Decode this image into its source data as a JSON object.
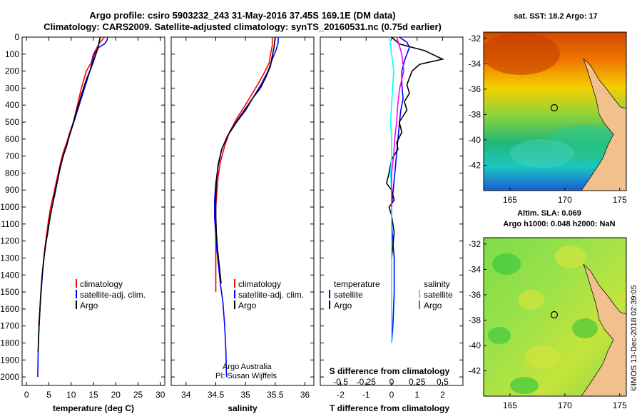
{
  "title_line1": "Argo profile: csiro 5903232_243 31-May-2016 37.45S 169.1E (DM data)",
  "title_line2": "Climatology: CARS2009. Satellite-adjusted climatology: synTS_20160531.nc (0.75d earlier)",
  "credit_line1": "Argo Australia",
  "credit_line2": "PI: Susan Wijffels",
  "copyright": "©IMOS 13-Dec-2018 02:39:05",
  "colors": {
    "climatology": "#ff0000",
    "satellite": "#0000ff",
    "argo": "#000000",
    "sat_s": "#00ffff",
    "argo_s": "#ff00ff"
  },
  "depth_ticks": [
    "0",
    "100",
    "200",
    "300",
    "400",
    "500",
    "600",
    "700",
    "800",
    "900",
    "1000",
    "1100",
    "1200",
    "1300",
    "1400",
    "1500",
    "1600",
    "1700",
    "1800",
    "1900",
    "2000"
  ],
  "legend_labels": [
    "climatology",
    "satellite-adj. clim.",
    "Argo"
  ],
  "diff_legend": {
    "temp_header": "temperature",
    "sal_header": "salinity",
    "satellite": "satellite",
    "argo": "Argo"
  },
  "map1": {
    "title": "sat. SST: 18.2  Argo: 17",
    "yticks": [
      "-32",
      "-34",
      "-36",
      "-38",
      "-40",
      "-42"
    ],
    "xticks": [
      "165",
      "170",
      "175"
    ]
  },
  "map2": {
    "title_line1": "Altim. SLA: 0.069",
    "title_line2": "Argo h1000: 0.048 h2000: NaN",
    "yticks": [
      "-32",
      "-34",
      "-36",
      "-38",
      "-40",
      "-42"
    ],
    "xticks": [
      "165",
      "170",
      "175"
    ]
  },
  "chart_data": [
    {
      "type": "line",
      "xlabel": "temperature (deg C)",
      "ylabel": "",
      "xlim": [
        -1,
        31
      ],
      "ylim": [
        2050,
        0
      ],
      "xticks": [
        "0",
        "5",
        "10",
        "15",
        "20",
        "25",
        "30"
      ],
      "series": [
        {
          "name": "climatology",
          "x": [
            17.5,
            16.5,
            15.6,
            15,
            14.5,
            13.4,
            12.3,
            11.4,
            10.5,
            9.7,
            9,
            8.2,
            7.6,
            7.1,
            6.6,
            6.1,
            5.4,
            4.9,
            4.5,
            4.1,
            3.8,
            3.5,
            3.3,
            3.1,
            2.9,
            2.7
          ],
          "y": [
            0,
            30,
            70,
            100,
            150,
            200,
            300,
            400,
            500,
            560,
            620,
            680,
            740,
            800,
            860,
            920,
            1000,
            1080,
            1160,
            1240,
            1320,
            1400,
            1480,
            1560,
            1640,
            1700
          ]
        },
        {
          "name": "satellite-adj. clim.",
          "x": [
            18.2,
            18,
            17.5,
            16.2,
            15.2,
            14.2,
            13,
            11.8,
            10.6,
            9.6,
            8.8,
            8,
            7.3,
            6.6,
            6,
            5.5,
            5,
            4.6,
            4.1,
            3.7,
            3.4,
            3.1,
            2.9,
            2.7,
            2.6,
            2.5
          ],
          "y": [
            0,
            20,
            40,
            60,
            100,
            200,
            300,
            400,
            500,
            580,
            650,
            720,
            800,
            880,
            960,
            1030,
            1100,
            1170,
            1250,
            1350,
            1450,
            1550,
            1650,
            1750,
            1850,
            2000
          ]
        },
        {
          "name": "Argo",
          "x": [
            16.5,
            16.2,
            15.8,
            15.3,
            14.5,
            13.4,
            12.4,
            11.4,
            10.5,
            9.6,
            9,
            8.2,
            7.5,
            6.9,
            6.3,
            5.7,
            5.2,
            4.8,
            4.3,
            3.9,
            3.5,
            3.2,
            3,
            2.8,
            2.6
          ],
          "y": [
            0,
            40,
            80,
            120,
            180,
            250,
            330,
            420,
            500,
            580,
            640,
            700,
            770,
            850,
            930,
            1000,
            1070,
            1140,
            1220,
            1300,
            1400,
            1500,
            1600,
            1700,
            1850
          ]
        }
      ]
    },
    {
      "type": "line",
      "xlabel": "salinity",
      "ylabel": "",
      "xlim": [
        33.75,
        36.15
      ],
      "ylim": [
        2050,
        0
      ],
      "xticks": [
        "34",
        "34.5",
        "35",
        "35.5",
        "36"
      ],
      "series": [
        {
          "name": "climatology",
          "x": [
            35.45,
            35.45,
            35.42,
            35.4,
            35.33,
            35.22,
            35.1,
            34.98,
            34.85,
            34.73,
            34.65,
            34.58,
            34.54,
            34.52,
            34.5,
            34.5,
            34.5,
            34.5,
            34.5,
            34.5
          ],
          "y": [
            0,
            50,
            100,
            150,
            200,
            270,
            340,
            410,
            480,
            560,
            640,
            730,
            820,
            900,
            1000,
            1100,
            1200,
            1300,
            1400,
            1500
          ]
        },
        {
          "name": "satellite-adj. clim.",
          "x": [
            35.55,
            35.55,
            35.52,
            35.45,
            35.38,
            35.26,
            35.12,
            34.98,
            34.84,
            34.7,
            34.6,
            34.54,
            34.5,
            34.48,
            34.48,
            34.5,
            34.52,
            34.55,
            34.58,
            34.62,
            34.65,
            34.67,
            34.68
          ],
          "y": [
            0,
            30,
            70,
            130,
            200,
            280,
            360,
            430,
            500,
            580,
            660,
            760,
            860,
            960,
            1060,
            1160,
            1260,
            1360,
            1460,
            1560,
            1700,
            1850,
            2000
          ]
        },
        {
          "name": "Argo",
          "x": [
            35.5,
            35.48,
            35.45,
            35.42,
            35.35,
            35.25,
            35.12,
            35,
            34.85,
            34.7,
            34.6,
            34.54,
            34.51,
            34.5,
            34.5,
            34.51,
            34.53,
            34.56,
            34.59
          ],
          "y": [
            0,
            60,
            110,
            170,
            230,
            300,
            360,
            430,
            500,
            580,
            660,
            750,
            850,
            950,
            1050,
            1150,
            1250,
            1350,
            1450
          ]
        }
      ]
    },
    {
      "type": "line",
      "xlabel": "T difference from climatology",
      "ylabel": "",
      "title": "S difference from climatology",
      "xlim": [
        -2.8,
        2.8
      ],
      "ylim": [
        2050,
        0
      ],
      "xticks": [
        "-2",
        "-1",
        "0",
        "1",
        "2"
      ],
      "top_xticks": [
        "-0.5",
        "-0.25",
        "0",
        "0.25",
        "0.5"
      ],
      "series": [
        {
          "name": "temperature satellite",
          "x": [
            0.3,
            0.6,
            0.7,
            0.6,
            0.5,
            0.4,
            0.4,
            0.45,
            0.35,
            0.3,
            0.25,
            0.2,
            0.15,
            0.1,
            0.05,
            0,
            0,
            0.1,
            0.1,
            0.05,
            0
          ],
          "y": [
            0,
            30,
            60,
            100,
            140,
            200,
            280,
            360,
            440,
            520,
            600,
            680,
            760,
            840,
            920,
            1000,
            1100,
            1300,
            1500,
            1700,
            1800
          ]
        },
        {
          "name": "temperature Argo",
          "x": [
            0,
            0.3,
            1.3,
            2,
            1.1,
            0.8,
            0.6,
            0.7,
            0.5,
            0.6,
            0.3,
            0.4,
            0.2,
            0.25,
            0,
            -0.1,
            -0.2,
            0,
            0.1,
            -0.1,
            0,
            0.1,
            0
          ],
          "y": [
            0,
            40,
            80,
            130,
            160,
            200,
            280,
            330,
            380,
            430,
            500,
            560,
            620,
            660,
            720,
            800,
            860,
            900,
            960,
            1000,
            1050,
            1150,
            1300
          ]
        },
        {
          "name": "salinity satellite",
          "x": [
            -0.02,
            0,
            0.02,
            0.01,
            0,
            -0.01,
            0,
            0,
            -0.01,
            0,
            0,
            0,
            0,
            0,
            0
          ],
          "y": [
            0,
            100,
            200,
            300,
            400,
            500,
            600,
            700,
            800,
            900,
            1000,
            1100,
            1300,
            1500,
            1800
          ]
        },
        {
          "name": "salinity Argo",
          "x": [
            0.05,
            0.1,
            0.12,
            0.08,
            0.06,
            0.05,
            0.03,
            0.02,
            0,
            0,
            0
          ],
          "y": [
            0,
            100,
            200,
            300,
            400,
            500,
            600,
            700,
            800,
            900,
            1000
          ]
        }
      ]
    }
  ]
}
